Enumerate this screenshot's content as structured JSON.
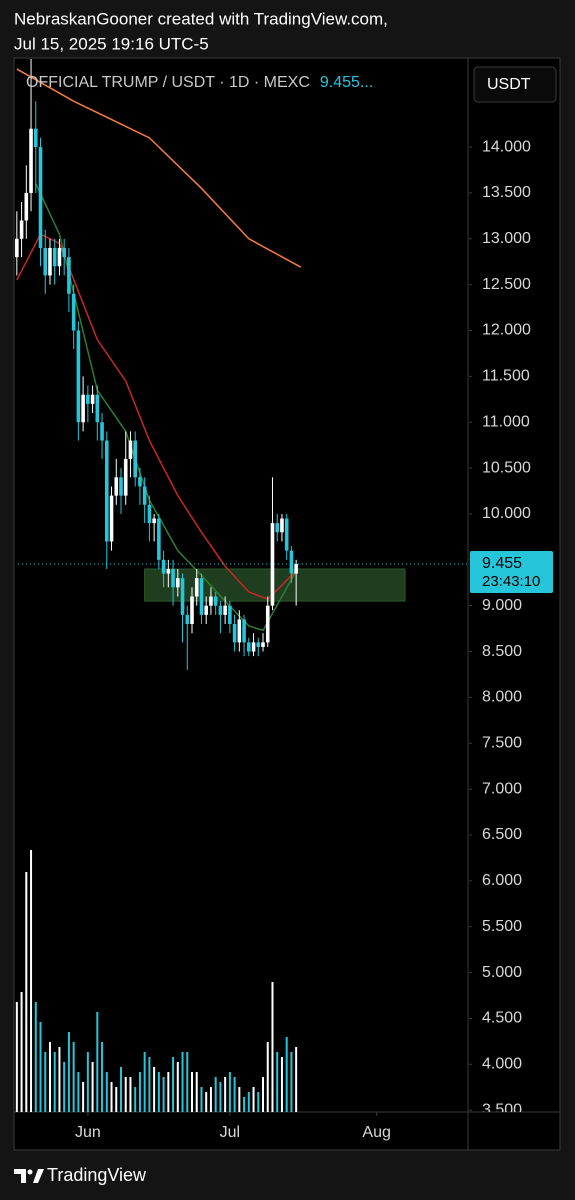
{
  "header": {
    "line1": "NebraskanGooner created with TradingView.com,",
    "line2": "Jul 15, 2025 19:16 UTC-5"
  },
  "footer": {
    "brand": "TradingView"
  },
  "chart_data": {
    "type": "candlestick",
    "title": "OFFICIAL TRUMP / USDT · 1D · MEXC",
    "title_value": "9.455...",
    "currency_button": "USDT",
    "up_color": "#ffffff",
    "down_color": "#26c6da",
    "x": [
      -15,
      -14,
      -13,
      -12,
      -11,
      -10,
      -9,
      -8,
      -7,
      -6,
      -5,
      -4,
      -3,
      -2,
      -1,
      0,
      1,
      2,
      3,
      4,
      5,
      6,
      7,
      8,
      9,
      10,
      11,
      12,
      13,
      14,
      15,
      16,
      17,
      18,
      19,
      20,
      21,
      22,
      23,
      24,
      25,
      26,
      27,
      28,
      29,
      30,
      31,
      32,
      33,
      34,
      35,
      36,
      37,
      38,
      39,
      40,
      41,
      42,
      43,
      44
    ],
    "open": [
      12.8,
      13.0,
      13.2,
      13.5,
      14.2,
      14.0,
      12.9,
      12.6,
      12.9,
      12.7,
      12.9,
      12.8,
      12.4,
      12.0,
      11.0,
      11.3,
      11.2,
      11.3,
      11.0,
      10.8,
      9.7,
      10.2,
      10.4,
      10.2,
      10.6,
      10.8,
      10.4,
      10.3,
      10.1,
      9.9,
      9.95,
      9.5,
      9.35,
      9.4,
      9.2,
      9.3,
      8.9,
      8.8,
      9.1,
      9.3,
      8.9,
      9.0,
      9.1,
      9.0,
      8.9,
      9.0,
      8.8,
      8.6,
      8.85,
      8.6,
      8.5,
      8.6,
      8.55,
      8.6,
      9.0,
      9.9,
      9.8,
      9.95,
      9.6,
      9.35
    ],
    "high": [
      13.3,
      13.4,
      13.8,
      14.96,
      14.5,
      14.1,
      13.1,
      13.0,
      13.0,
      13.0,
      13.0,
      12.9,
      12.5,
      12.1,
      11.5,
      11.4,
      11.4,
      11.4,
      11.1,
      10.9,
      10.3,
      10.6,
      10.5,
      10.9,
      10.9,
      10.9,
      10.5,
      10.4,
      10.2,
      10.0,
      10.0,
      9.6,
      9.5,
      9.5,
      9.4,
      9.35,
      9.0,
      9.2,
      9.4,
      9.35,
      9.1,
      9.2,
      9.15,
      9.05,
      9.1,
      9.05,
      8.9,
      8.95,
      8.9,
      8.65,
      8.7,
      8.65,
      8.7,
      9.1,
      10.4,
      10.0,
      10.0,
      10.0,
      9.65,
      9.5
    ],
    "low": [
      12.6,
      12.8,
      13.0,
      13.3,
      13.5,
      12.7,
      12.4,
      12.5,
      12.5,
      12.6,
      12.6,
      12.2,
      11.8,
      10.8,
      10.9,
      11.0,
      11.1,
      10.8,
      10.6,
      9.4,
      9.6,
      10.1,
      10.0,
      10.1,
      10.4,
      10.3,
      10.1,
      9.9,
      9.7,
      9.7,
      9.4,
      9.2,
      9.2,
      9.0,
      9.1,
      8.6,
      8.3,
      8.7,
      9.0,
      8.8,
      8.8,
      8.9,
      8.9,
      8.7,
      8.8,
      8.7,
      8.5,
      8.5,
      8.45,
      8.45,
      8.45,
      8.45,
      8.5,
      8.55,
      8.95,
      9.7,
      9.7,
      9.5,
      9.25,
      9.0
    ],
    "close": [
      13.0,
      13.2,
      13.5,
      14.2,
      14.0,
      12.9,
      12.6,
      12.9,
      12.7,
      12.9,
      12.8,
      12.4,
      12.0,
      11.0,
      11.3,
      11.2,
      11.3,
      11.0,
      10.8,
      9.7,
      10.2,
      10.4,
      10.2,
      10.6,
      10.8,
      10.4,
      10.3,
      10.1,
      9.9,
      9.95,
      9.5,
      9.35,
      9.4,
      9.2,
      9.3,
      8.9,
      8.8,
      9.1,
      9.3,
      8.9,
      9.0,
      9.1,
      9.0,
      8.9,
      9.0,
      8.8,
      8.6,
      8.85,
      8.6,
      8.5,
      8.6,
      8.55,
      8.6,
      9.0,
      9.9,
      9.8,
      9.95,
      9.6,
      9.35,
      9.455
    ],
    "volume": [
      110,
      120,
      240,
      262,
      110,
      90,
      60,
      70,
      60,
      65,
      50,
      80,
      70,
      40,
      30,
      60,
      50,
      100,
      70,
      40,
      30,
      25,
      45,
      35,
      35,
      25,
      40,
      60,
      55,
      45,
      40,
      35,
      40,
      55,
      50,
      60,
      60,
      40,
      40,
      25,
      20,
      25,
      35,
      30,
      35,
      40,
      35,
      25,
      15,
      20,
      25,
      20,
      35,
      70,
      130,
      60,
      55,
      75,
      60,
      65
    ],
    "lines": [
      {
        "color": "#f57c45",
        "x": [
          -15,
          -3,
          13,
          24,
          34,
          45
        ],
        "values": [
          14.85,
          14.5,
          14.1,
          13.55,
          13.0,
          12.69
        ]
      },
      {
        "color": "#c62828",
        "x": [
          -15,
          -10,
          -6,
          2,
          8,
          13,
          19,
          24,
          29,
          34,
          38,
          44
        ],
        "values": [
          12.55,
          13.05,
          12.95,
          11.9,
          11.45,
          10.8,
          10.2,
          9.8,
          9.43,
          9.15,
          9.07,
          9.38
        ]
      },
      {
        "color": "#2e7d32",
        "x": [
          -11,
          -6,
          -2,
          2,
          8,
          13,
          19,
          24,
          29,
          34,
          37,
          44
        ],
        "values": [
          13.6,
          13.05,
          12.2,
          11.35,
          10.9,
          10.15,
          9.6,
          9.33,
          9.05,
          8.78,
          8.73,
          9.38
        ]
      }
    ],
    "zone": {
      "x": [
        12,
        67
      ],
      "y": [
        9.05,
        9.4
      ],
      "color": "#1f3d1f"
    },
    "last_price": 9.455,
    "countdown": "23:43:10",
    "xlim": [
      -15.6,
      80.3
    ],
    "ylim": [
      3.48,
      14.96
    ],
    "xticks": [
      {
        "value": 0,
        "label": "Jun"
      },
      {
        "value": 30,
        "label": "Jul"
      },
      {
        "value": 61,
        "label": "Aug"
      }
    ],
    "yticks": [
      {
        "value": 3.5,
        "label": "3.500"
      },
      {
        "value": 4,
        "label": "4.000"
      },
      {
        "value": 4.5,
        "label": "4.500"
      },
      {
        "value": 5,
        "label": "5.000"
      },
      {
        "value": 5.5,
        "label": "5.500"
      },
      {
        "value": 6,
        "label": "6.000"
      },
      {
        "value": 6.5,
        "label": "6.500"
      },
      {
        "value": 7,
        "label": "7.000"
      },
      {
        "value": 7.5,
        "label": "7.500"
      },
      {
        "value": 8,
        "label": "8.000"
      },
      {
        "value": 8.5,
        "label": "8.500"
      },
      {
        "value": 9,
        "label": "9.000"
      },
      {
        "value": 9.5,
        "label": "9.500"
      },
      {
        "value": 10,
        "label": "10.000"
      },
      {
        "value": 10.5,
        "label": "10.500"
      },
      {
        "value": 11,
        "label": "11.000"
      },
      {
        "value": 11.5,
        "label": "11.500"
      },
      {
        "value": 12,
        "label": "12.000"
      },
      {
        "value": 12.5,
        "label": "12.500"
      },
      {
        "value": 13,
        "label": "13.000"
      },
      {
        "value": 13.5,
        "label": "13.500"
      },
      {
        "value": 14,
        "label": "14.000"
      }
    ]
  }
}
